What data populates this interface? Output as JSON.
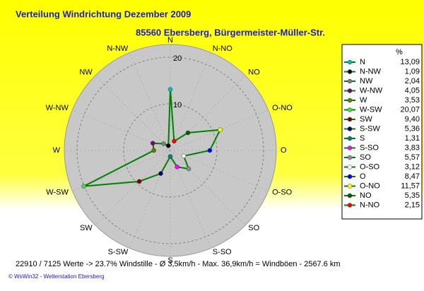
{
  "chart_data": {
    "type": "radar",
    "title": "Verteilung Windrichtung   Dezember 2009",
    "subtitle": "85560 Ebersberg, Bürgermeister-Müller-Str.",
    "legend_header": "%",
    "categories": [
      "N",
      "N-NW",
      "NW",
      "W-NW",
      "W",
      "W-SW",
      "SW",
      "S-SW",
      "S",
      "S-SO",
      "SO",
      "O-SO",
      "O",
      "O-NO",
      "NO",
      "N-NO"
    ],
    "series": [
      {
        "name": "Windrichtung",
        "color": "#008000",
        "values": [
          13.09,
          1.09,
          2.04,
          4.05,
          3.53,
          20.07,
          9.4,
          5.36,
          1.31,
          3.83,
          5.57,
          3.12,
          8.47,
          11.57,
          5.35,
          2.15
        ],
        "value_labels": [
          "13,09",
          "1,09",
          "2,04",
          "4,05",
          "3,53",
          "20,07",
          "9,40",
          "5,36",
          "1,31",
          "3,83",
          "5,57",
          "3,12",
          "8,47",
          "11,57",
          "5,35",
          "2,15"
        ],
        "marker_colors": [
          "#00c0c0",
          "#000000",
          "#808080",
          "#800080",
          "#608000",
          "#40e040",
          "#800000",
          "#000080",
          "#008080",
          "#ff00ff",
          "#909090",
          "#ffffff",
          "#0000ff",
          "#ffff00",
          "#006000",
          "#ff0000"
        ]
      }
    ],
    "rlim": [
      0,
      20
    ],
    "rticks": [
      10,
      20
    ],
    "grid": true,
    "footer": "22910 / 7125 Werte  -> 23.7% Windstille  -  Ø 3,5km/h  -  Max. 36,9km/h = Windböen  -  2567.6 km",
    "credit": "© WsWin32  -  Wetterstation Ebersberg"
  }
}
